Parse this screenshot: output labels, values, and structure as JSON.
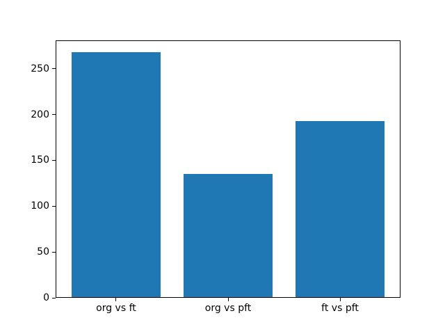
{
  "chart_data": {
    "type": "bar",
    "categories": [
      "org vs ft",
      "org vs pft",
      "ft vs pft"
    ],
    "values": [
      268,
      135,
      193
    ],
    "title": "",
    "xlabel": "",
    "ylabel": "",
    "xlim": [
      -0.54,
      2.54
    ],
    "ylim": [
      0,
      281
    ],
    "yticks": [
      0,
      50,
      100,
      150,
      200,
      250
    ],
    "bar_width": 0.8,
    "bar_color": "#1f77b4",
    "axis_color": "#000000",
    "background_color": "#ffffff",
    "grid": false,
    "legend": false
  }
}
